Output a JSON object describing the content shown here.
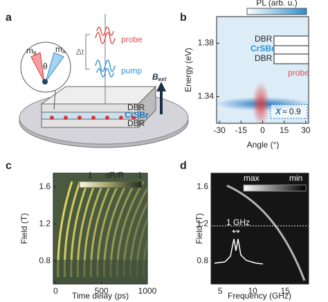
{
  "panel_a": {
    "label": "a",
    "probe": "probe",
    "pump": "pump",
    "delay": "Δt",
    "field": "B",
    "field_sub": "ext",
    "magnetization_b": "m",
    "magnetization_b_sub": "B",
    "magnetization_a": "m",
    "magnetization_a_sub": "A",
    "angle": "θ",
    "layers": [
      "DBR",
      "CrSBr",
      "DBR"
    ]
  },
  "panel_b": {
    "label": "b",
    "colorbar_label": "PL (arb. u.)",
    "xlabel": "Angle (°)",
    "ylabel": "Energy (eV)",
    "xlim": [
      -32,
      32
    ],
    "xticks": [
      -30,
      -15,
      0,
      15,
      30
    ],
    "ylim": [
      1.32,
      1.4
    ],
    "yticks": [
      1.34,
      1.38
    ],
    "inset_layers": [
      "DBR",
      "CrSBr",
      "DBR"
    ],
    "probe": "probe",
    "annotation_symbol": "X",
    "annotation_text": "≈ 0.9"
  },
  "panel_c": {
    "label": "c",
    "colorbar_label": "dR/R",
    "colorbar_max": "1",
    "colorbar_min": "-1",
    "xlabel": "Time delay (ps)",
    "ylabel": "Field (T)",
    "xlim": [
      -25,
      1000
    ],
    "xticks": [
      0,
      500,
      1000
    ],
    "ylim": [
      0.55,
      1.75
    ],
    "yticks": [
      0.8,
      1.2,
      1.6
    ]
  },
  "panel_d": {
    "label": "d",
    "colorbar_max": "max",
    "colorbar_min": "min",
    "xlabel": "Frequency (GHz)",
    "ylabel": "Field (T)",
    "xlim": [
      3.6,
      18.6
    ],
    "xticks": [
      5,
      10,
      15
    ],
    "ylim": [
      0.55,
      1.75
    ],
    "yticks": [
      0.8,
      1.2,
      1.6
    ],
    "linewidth_label": "1 GHz"
  }
}
